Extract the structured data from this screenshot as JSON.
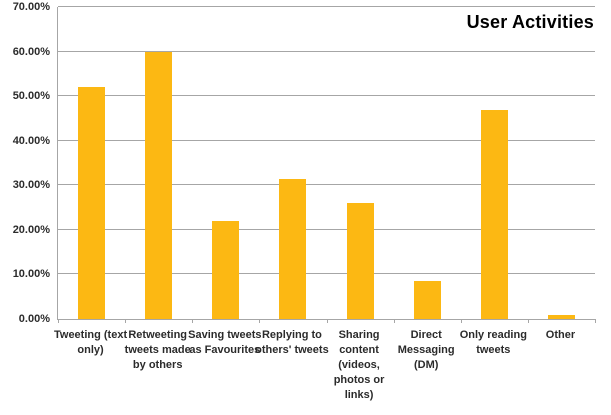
{
  "chart_data": {
    "type": "bar",
    "title": "User Activities",
    "categories": [
      "Tweeting (text only)",
      "Retweeting tweets made by others",
      "Saving tweets as Favourites",
      "Replying to others' tweets",
      "Sharing content (videos, photos or links)",
      "Direct Messaging (DM)",
      "Only reading tweets",
      "Other"
    ],
    "values": [
      52,
      60,
      22,
      31.5,
      26,
      8.5,
      47,
      1
    ],
    "unit": "%",
    "xlabel": "",
    "ylabel": "",
    "ylim": [
      0,
      70
    ],
    "ytick_step": 10,
    "ytick_labels": [
      "0.00%",
      "10.00%",
      "20.00%",
      "30.00%",
      "40.00%",
      "50.00%",
      "60.00%",
      "70.00%"
    ],
    "grid": true,
    "legend": "none",
    "bar_color": "#fcb813",
    "gridline_color": "#a6a6a6",
    "axis_color": "#a6a6a6",
    "label_color": "#2b2b2b",
    "title_color": "#000000",
    "background_color": "#ffffff"
  }
}
